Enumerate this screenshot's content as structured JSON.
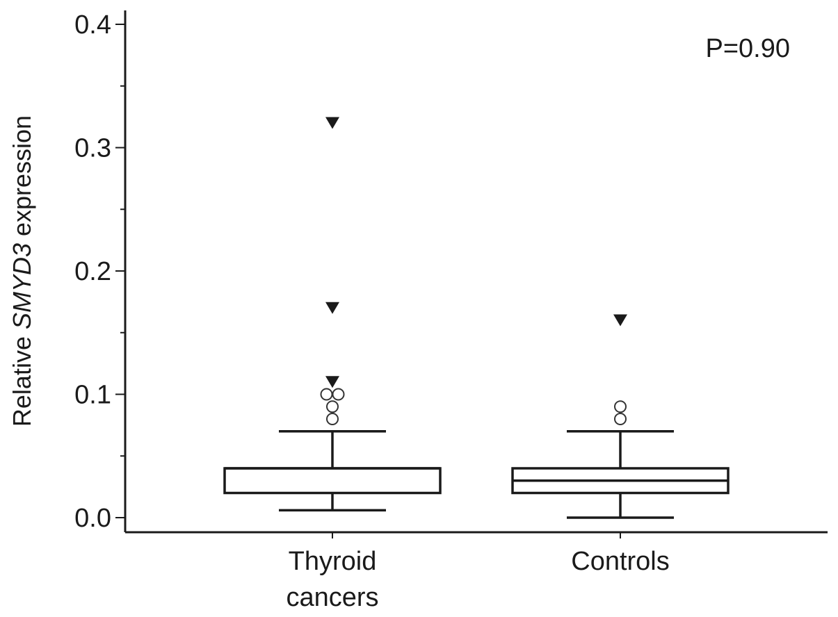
{
  "chart_data": {
    "type": "boxplot",
    "ylabel_prefix": "Relative ",
    "ylabel_italic": "SMYD3",
    "ylabel_suffix": " expression",
    "xlabel": "",
    "ylim": [
      0.0,
      0.4
    ],
    "y_ticks": [
      0.0,
      0.1,
      0.2,
      0.3,
      0.4
    ],
    "y_tick_labels": [
      "0.0",
      "0.1",
      "0.2",
      "0.3",
      "0.4"
    ],
    "y_minor_ticks": [
      0.05,
      0.15,
      0.25,
      0.35
    ],
    "annotation": "P=0.90",
    "groups": [
      {
        "label_lines": [
          "Thyroid",
          "cancers"
        ],
        "whisker_low": 0.006,
        "q1": 0.02,
        "median": 0.04,
        "q3": 0.04,
        "whisker_high": 0.07,
        "outliers_circle": [
          0.1,
          0.1,
          0.09,
          0.08
        ],
        "outliers_triangle": [
          0.32,
          0.17,
          0.11
        ]
      },
      {
        "label_lines": [
          "Controls"
        ],
        "whisker_low": 0.0,
        "q1": 0.02,
        "median": 0.03,
        "q3": 0.04,
        "whisker_high": 0.07,
        "outliers_circle": [
          0.09,
          0.08
        ],
        "outliers_triangle": [
          0.16
        ]
      }
    ],
    "grid": false,
    "legend": "none"
  }
}
